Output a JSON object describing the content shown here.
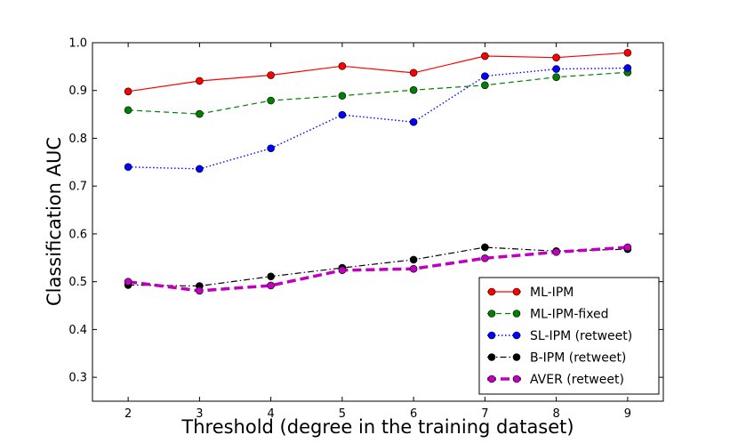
{
  "chart_data": {
    "type": "line",
    "title": "",
    "xlabel": "Threshold (degree in the training dataset)",
    "ylabel": "Classification AUC",
    "x": [
      2,
      3,
      4,
      5,
      6,
      7,
      8,
      9
    ],
    "xlim": [
      1.5,
      9.5
    ],
    "ylim": [
      0.25,
      1.0
    ],
    "xticks": [
      "2",
      "3",
      "4",
      "5",
      "6",
      "7",
      "8",
      "9"
    ],
    "yticks": [
      "0.3",
      "0.4",
      "0.5",
      "0.6",
      "0.7",
      "0.8",
      "0.9",
      "1.0"
    ],
    "grid": false,
    "legend_position": "lower-right",
    "series": [
      {
        "name": "ML-IPM",
        "color": "#ff0000",
        "line_style": "solid",
        "values": [
          0.898,
          0.92,
          0.932,
          0.951,
          0.937,
          0.972,
          0.969,
          0.979
        ]
      },
      {
        "name": "ML-IPM-fixed",
        "color": "#008000",
        "line_style": "dashed",
        "values": [
          0.859,
          0.851,
          0.879,
          0.889,
          0.901,
          0.911,
          0.928,
          0.938
        ]
      },
      {
        "name": "SL-IPM (retweet)",
        "color": "#0000ff",
        "line_style": "dotted",
        "values": [
          0.74,
          0.736,
          0.779,
          0.849,
          0.834,
          0.93,
          0.945,
          0.947
        ]
      },
      {
        "name": "B-IPM (retweet)",
        "color": "#000000",
        "line_style": "dashdot",
        "values": [
          0.493,
          0.491,
          0.511,
          0.529,
          0.546,
          0.572,
          0.564,
          0.568
        ]
      },
      {
        "name": "AVER (retweet)",
        "color": "#bf00bf",
        "line_style": "thick-dashed",
        "values": [
          0.5,
          0.481,
          0.492,
          0.524,
          0.527,
          0.549,
          0.562,
          0.572
        ]
      }
    ]
  }
}
